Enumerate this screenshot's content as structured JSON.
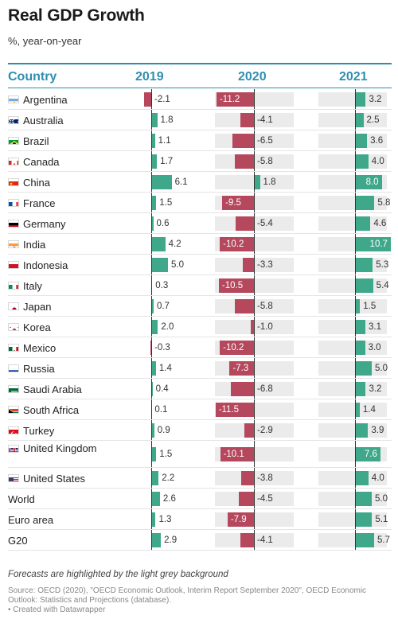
{
  "header": {
    "title": "Real GDP Growth",
    "subtitle": "%, year-on-year",
    "col_country": "Country",
    "col_2019": "2019",
    "col_2020": "2020",
    "col_2021": "2021"
  },
  "footer": {
    "note": "Forecasts are highlighted by the light grey background",
    "source": "Source: OECD (2020), \"OECD Economic Outlook, Interim Report September 2020\", OECD Economic Outlook: Statistics and Projections (database).",
    "credit": "• Created with Datawrapper"
  },
  "colors": {
    "positive": "#3fa88a",
    "negative": "#b5485d",
    "forecast_bg": "#ebebeb",
    "accent": "#2f8fb0"
  },
  "chart_data": {
    "type": "table",
    "title": "Real GDP Growth",
    "subtitle": "%, year-on-year",
    "columns": [
      "2019",
      "2020",
      "2021"
    ],
    "forecast_columns": [
      "2020",
      "2021"
    ],
    "rows": [
      {
        "country": "Argentina",
        "flag": "flag-argentina",
        "values": [
          -2.1,
          -11.2,
          3.2
        ]
      },
      {
        "country": "Australia",
        "flag": "flag-australia",
        "values": [
          1.8,
          -4.1,
          2.5
        ]
      },
      {
        "country": "Brazil",
        "flag": "flag-brazil",
        "values": [
          1.1,
          -6.5,
          3.6
        ]
      },
      {
        "country": "Canada",
        "flag": "flag-canada",
        "values": [
          1.7,
          -5.8,
          4.0
        ]
      },
      {
        "country": "China",
        "flag": "flag-china",
        "values": [
          6.1,
          1.8,
          8.0
        ]
      },
      {
        "country": "France",
        "flag": "flag-france",
        "values": [
          1.5,
          -9.5,
          5.8
        ]
      },
      {
        "country": "Germany",
        "flag": "flag-germany",
        "values": [
          0.6,
          -5.4,
          4.6
        ]
      },
      {
        "country": "India",
        "flag": "flag-india",
        "values": [
          4.2,
          -10.2,
          10.7
        ]
      },
      {
        "country": "Indonesia",
        "flag": "flag-indonesia",
        "values": [
          5.0,
          -3.3,
          5.3
        ]
      },
      {
        "country": "Italy",
        "flag": "flag-italy",
        "values": [
          0.3,
          -10.5,
          5.4
        ]
      },
      {
        "country": "Japan",
        "flag": "flag-japan",
        "values": [
          0.7,
          -5.8,
          1.5
        ]
      },
      {
        "country": "Korea",
        "flag": "flag-korea",
        "values": [
          2.0,
          -1.0,
          3.1
        ]
      },
      {
        "country": "Mexico",
        "flag": "flag-mexico",
        "values": [
          -0.3,
          -10.2,
          3.0
        ]
      },
      {
        "country": "Russia",
        "flag": "flag-russia",
        "values": [
          1.4,
          -7.3,
          5.0
        ]
      },
      {
        "country": "Saudi Arabia",
        "flag": "flag-saudi-arabia",
        "values": [
          0.4,
          -6.8,
          3.2
        ]
      },
      {
        "country": "South Africa",
        "flag": "flag-south-africa",
        "values": [
          0.1,
          -11.5,
          1.4
        ]
      },
      {
        "country": "Turkey",
        "flag": "flag-turkey",
        "values": [
          0.9,
          -2.9,
          3.9
        ]
      },
      {
        "country": "United Kingdom",
        "flag": "flag-united-kingdom",
        "values": [
          1.5,
          -10.1,
          7.6
        ]
      },
      {
        "country": "United States",
        "flag": "flag-united-states",
        "values": [
          2.2,
          -3.8,
          4.0
        ]
      },
      {
        "country": "World",
        "flag": "",
        "values": [
          2.6,
          -4.5,
          5.0
        ]
      },
      {
        "country": "Euro area",
        "flag": "",
        "values": [
          1.3,
          -7.9,
          5.1
        ]
      },
      {
        "country": "G20",
        "flag": "",
        "values": [
          2.9,
          -4.1,
          5.7
        ]
      }
    ]
  }
}
